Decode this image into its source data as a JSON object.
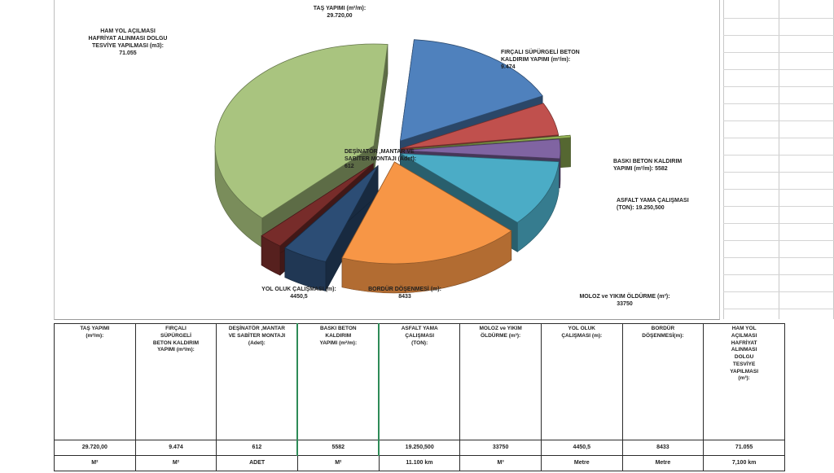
{
  "chart_data": {
    "type": "pie",
    "style": "3d-exploded",
    "slices": [
      {
        "label_lines": [
          "TAŞ YAPIMI (m²/m):",
          "29.720,00"
        ],
        "value": 29720,
        "color": "#4f81bd"
      },
      {
        "label_lines": [
          "FIRÇALI SÜPÜRGELİ BETON",
          "KALDIRIM YAPIMI (m²/m):",
          "9.474"
        ],
        "value": 9474,
        "color": "#c0504d"
      },
      {
        "label_lines": [
          "DEŞİNATÖR ,MANTAR VE",
          "SABİTER MONTAJI (Adet):",
          "612"
        ],
        "value": 612,
        "color": "#9bbb59"
      },
      {
        "label_lines": [
          "BASKI BETON KALDIRIM",
          "YAPIMI (m²/m): 5582"
        ],
        "value": 5582,
        "color": "#8064a2"
      },
      {
        "label_lines": [
          "ASFALT YAMA ÇALIŞMASI",
          "(TON): 19.250,500"
        ],
        "value": 19250.5,
        "color": "#4bacc6"
      },
      {
        "label_lines": [
          "MOLOZ ve YIKIM ÖLDÜRME (m³):",
          "33750"
        ],
        "value": 33750,
        "color": "#f79646"
      },
      {
        "label_lines": [
          "BORDÜR DÖŞENMESİ (m):",
          "8433"
        ],
        "value": 8433,
        "color": "#2c4d75"
      },
      {
        "label_lines": [
          "YOL OLUK ÇALIŞMASI (m):",
          "4450,5"
        ],
        "value": 4450.5,
        "color": "#772c2a"
      },
      {
        "label_lines": [
          "HAM YOL AÇILMASI",
          "HAFRİYAT ALINMASI DOLGU",
          "TESVİYE YAPILMASI (m3):",
          "71.055"
        ],
        "value": 71055,
        "color": "#a9c47f"
      }
    ]
  },
  "table": {
    "headers": [
      [
        "TAŞ YAPIMI",
        "(m²/m):"
      ],
      [
        "FIRÇALI",
        "SÜPÜRGELİ",
        "BETON KALDIRIM",
        "YAPIMI (m²/m):"
      ],
      [
        "DEŞİNATÖR ,MANTAR",
        "VE SABİTER MONTAJI",
        "(Adet):"
      ],
      [
        "BASKI BETON",
        "KALDIRIM",
        "YAPIMI (m²/m):"
      ],
      [
        "ASFALT YAMA",
        "ÇALIŞMASI",
        "(TON):"
      ],
      [
        "MOLOZ ve YIKIM",
        "ÖLDÜRME (m³):"
      ],
      [
        "YOL OLUK",
        "ÇALIŞMASI (m):"
      ],
      [
        "BORDÜR",
        "DÖŞENMESİ(m):"
      ],
      [
        "HAM YOL",
        "AÇILMASI",
        "HAFRİYAT",
        "ALINMASI",
        "DOLGU",
        "TESVİYE",
        "YAPILMASI",
        "(m³):"
      ]
    ],
    "values": [
      "29.720,00",
      "9.474",
      "612",
      "5582",
      "19.250,500",
      "33750",
      "4450,5",
      "8433",
      "71.055"
    ],
    "units": [
      "M²",
      "M²",
      "ADET",
      "M²",
      "11.100 km",
      "M³",
      "Metre",
      "Metre",
      "7,100 km"
    ]
  }
}
